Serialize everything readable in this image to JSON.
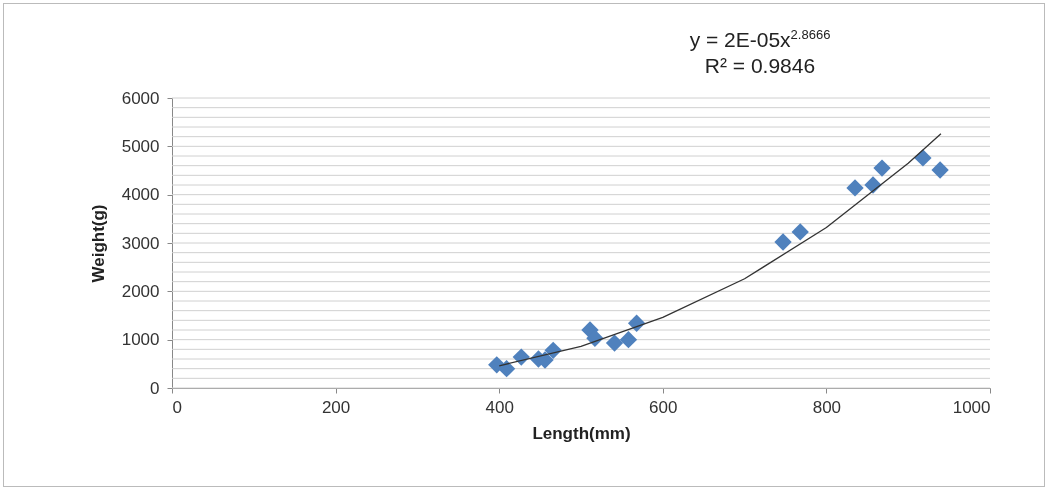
{
  "chart_data": {
    "type": "scatter",
    "xlabel": "Length(mm)",
    "ylabel": "Weight(g)",
    "annotations": [
      "y = 2E-05x$^{2.8666}$",
      "R² = 0.9846"
    ],
    "xlim": [
      0,
      1000
    ],
    "xticks": [
      0,
      200,
      400,
      600,
      800,
      1000
    ],
    "ylim": [
      0,
      6000
    ],
    "yticks": [
      0,
      {
        "value": 200,
        "label": null
      },
      {
        "value": 400,
        "label": null
      },
      {
        "value": 600,
        "label": null
      },
      {
        "value": 800,
        "label": null
      },
      1000,
      {
        "value": 1200,
        "label": null
      },
      {
        "value": 1400,
        "label": null
      },
      {
        "value": 1600,
        "label": null
      },
      {
        "value": 1800,
        "label": null
      },
      2000,
      {
        "value": 2200,
        "label": null
      },
      {
        "value": 2400,
        "label": null
      },
      {
        "value": 2600,
        "label": null
      },
      {
        "value": 2800,
        "label": null
      },
      3000,
      {
        "value": 3200,
        "label": null
      },
      {
        "value": 3400,
        "label": null
      },
      {
        "value": 3600,
        "label": null
      },
      {
        "value": 3800,
        "label": null
      },
      4000,
      {
        "value": 4200,
        "label": null
      },
      {
        "value": 4400,
        "label": null
      },
      {
        "value": 4600,
        "label": null
      },
      {
        "value": 4800,
        "label": null
      },
      5000,
      {
        "value": 5200,
        "label": null
      },
      {
        "value": 5400,
        "label": null
      },
      {
        "value": 5600,
        "label": null
      },
      {
        "value": 5800,
        "label": null
      },
      6000
    ],
    "grid": "y",
    "marker": "diamond",
    "series": [
      {
        "type": "scatter",
        "color": "#4f81bd",
        "x": [
          397,
          409,
          427,
          448,
          456,
          466,
          511,
          517,
          541,
          558,
          568,
          747,
          768,
          835,
          857,
          868,
          918,
          939
        ],
        "values": [
          480,
          400,
          640,
          600,
          580,
          780,
          1200,
          1030,
          930,
          1000,
          1340,
          3020,
          3230,
          4140,
          4200,
          4550,
          4760,
          4510
        ]
      },
      {
        "type": "line",
        "color": "#333333",
        "marker": "none",
        "x": [
          400,
          500,
          600,
          700,
          800,
          900,
          940
        ],
        "values": [
          460,
          860,
          1460,
          2260,
          3320,
          4650,
          5260
        ]
      }
    ]
  }
}
